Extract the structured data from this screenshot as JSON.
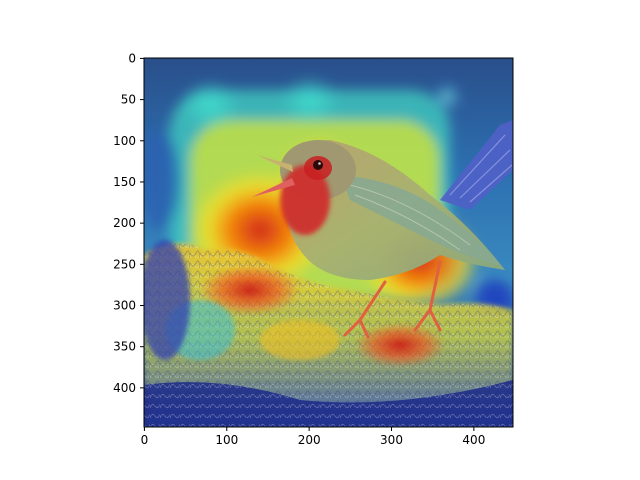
{
  "figure": {
    "background": "#ffffff",
    "image": {
      "subject": "bird-on-moss",
      "overlay": "jet-colormap-heatmap",
      "width": 448,
      "height": 448
    },
    "x_axis": {
      "ticks": [
        {
          "value": 0,
          "label": "0"
        },
        {
          "value": 100,
          "label": "100"
        },
        {
          "value": 200,
          "label": "200"
        },
        {
          "value": 300,
          "label": "300"
        },
        {
          "value": 400,
          "label": "400"
        }
      ]
    },
    "y_axis": {
      "ticks": [
        {
          "value": 0,
          "label": "0"
        },
        {
          "value": 50,
          "label": "50"
        },
        {
          "value": 100,
          "label": "100"
        },
        {
          "value": 150,
          "label": "150"
        },
        {
          "value": 200,
          "label": "200"
        },
        {
          "value": 250,
          "label": "250"
        },
        {
          "value": 300,
          "label": "300"
        },
        {
          "value": 350,
          "label": "350"
        },
        {
          "value": 400,
          "label": "400"
        }
      ]
    }
  }
}
